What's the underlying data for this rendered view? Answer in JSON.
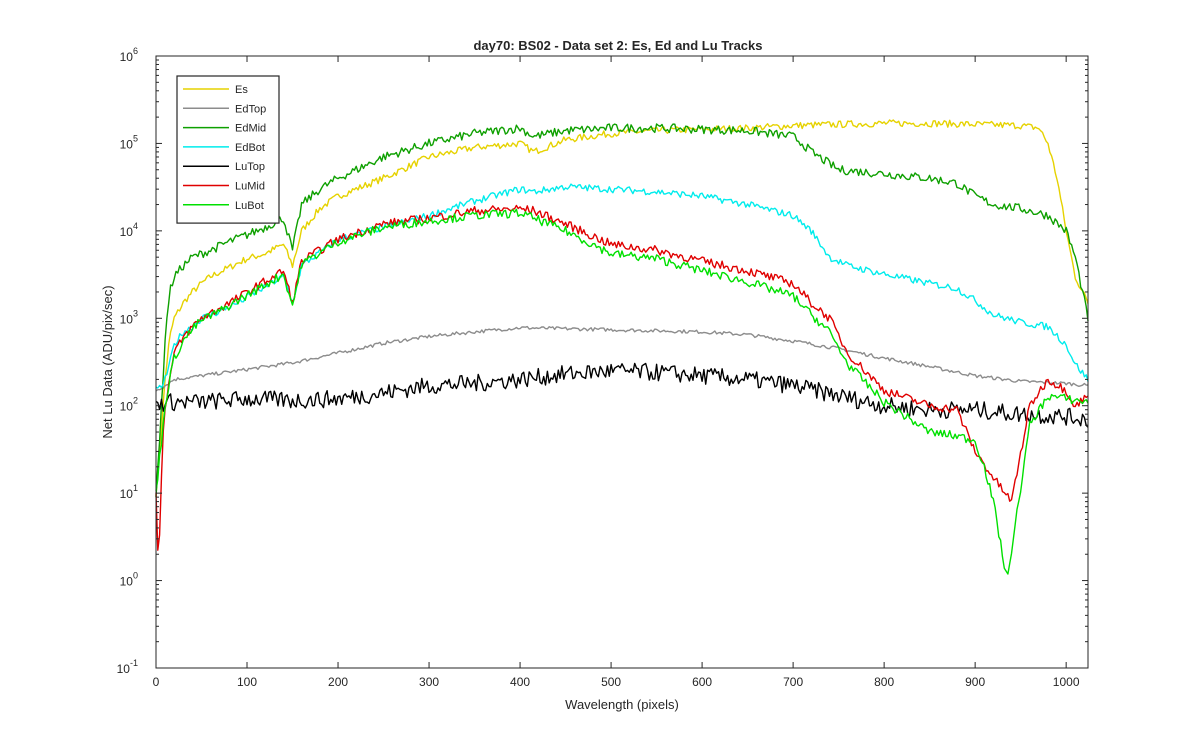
{
  "chart_data": {
    "type": "line",
    "title": "day70: BS02 - Data set 2: Es, Ed and Lu Tracks",
    "xlabel": "Wavelength (pixels)",
    "ylabel": "Net Lu Data (ADU/pix/sec)",
    "xlim": [
      0,
      1024
    ],
    "ylim": [
      0.1,
      1000000
    ],
    "yscale": "log",
    "grid": false,
    "legend_position": "top-left",
    "x_ticks": [
      0,
      100,
      200,
      300,
      400,
      500,
      600,
      700,
      800,
      900,
      1000
    ],
    "x_tick_labels": [
      "0",
      "100",
      "200",
      "300",
      "400",
      "500",
      "600",
      "700",
      "800",
      "900",
      "1000"
    ],
    "y_ticks": [
      {
        "value": 0.1,
        "base": "10",
        "exp": "-1"
      },
      {
        "value": 1,
        "base": "10",
        "exp": "0"
      },
      {
        "value": 10,
        "base": "10",
        "exp": "1"
      },
      {
        "value": 100,
        "base": "10",
        "exp": "2"
      },
      {
        "value": 1000,
        "base": "10",
        "exp": "3"
      },
      {
        "value": 10000,
        "base": "10",
        "exp": "4"
      },
      {
        "value": 100000,
        "base": "10",
        "exp": "5"
      },
      {
        "value": 1000000,
        "base": "10",
        "exp": "6"
      }
    ],
    "series": [
      {
        "name": "Es",
        "color": "#e6d200",
        "noise": 0.04,
        "x": [
          0,
          5,
          10,
          15,
          20,
          30,
          40,
          50,
          60,
          80,
          100,
          120,
          140,
          150,
          160,
          180,
          200,
          250,
          300,
          350,
          400,
          415,
          450,
          500,
          550,
          600,
          650,
          700,
          750,
          800,
          850,
          900,
          950,
          970,
          980,
          990,
          1000,
          1010,
          1024
        ],
        "y": [
          10,
          40,
          200,
          600,
          1000,
          1500,
          2000,
          2500,
          3000,
          3800,
          4800,
          5500,
          7000,
          4000,
          10000,
          18000,
          25000,
          40000,
          70000,
          90000,
          100000,
          80000,
          110000,
          130000,
          140000,
          145000,
          150000,
          160000,
          165000,
          170000,
          170000,
          165000,
          160000,
          150000,
          100000,
          40000,
          10000,
          3000,
          1500
        ]
      },
      {
        "name": "EdTop",
        "color": "#8c8c8c",
        "noise": 0.02,
        "x": [
          0,
          10,
          20,
          50,
          100,
          150,
          200,
          250,
          300,
          350,
          400,
          450,
          500,
          550,
          600,
          650,
          700,
          750,
          800,
          850,
          900,
          950,
          1000,
          1024
        ],
        "y": [
          150,
          170,
          200,
          220,
          260,
          310,
          400,
          520,
          620,
          700,
          780,
          760,
          740,
          720,
          700,
          650,
          550,
          450,
          350,
          280,
          220,
          190,
          180,
          170
        ]
      },
      {
        "name": "EdMid",
        "color": "#0ea000",
        "noise": 0.05,
        "x": [
          0,
          5,
          10,
          15,
          20,
          30,
          40,
          60,
          80,
          100,
          120,
          140,
          150,
          160,
          180,
          200,
          250,
          300,
          350,
          400,
          415,
          450,
          500,
          550,
          600,
          650,
          700,
          710,
          720,
          750,
          800,
          850,
          880,
          900,
          920,
          950,
          980,
          1000,
          1010,
          1024
        ],
        "y": [
          10,
          60,
          600,
          2000,
          3000,
          4000,
          5000,
          6000,
          7500,
          9000,
          11000,
          14000,
          6000,
          20000,
          30000,
          40000,
          70000,
          100000,
          130000,
          150000,
          120000,
          140000,
          150000,
          150000,
          145000,
          140000,
          120000,
          100000,
          80000,
          50000,
          45000,
          40000,
          35000,
          25000,
          20000,
          18000,
          15000,
          10000,
          5000,
          1000
        ]
      },
      {
        "name": "EdBot",
        "color": "#00ecec",
        "noise": 0.04,
        "x": [
          0,
          5,
          10,
          15,
          20,
          30,
          40,
          50,
          70,
          90,
          110,
          140,
          150,
          160,
          200,
          250,
          300,
          350,
          400,
          415,
          450,
          500,
          550,
          600,
          650,
          700,
          720,
          740,
          760,
          800,
          850,
          880,
          900,
          920,
          950,
          980,
          1000,
          1010,
          1024
        ],
        "y": [
          150,
          160,
          200,
          300,
          500,
          700,
          800,
          1000,
          1200,
          1500,
          2000,
          3000,
          1500,
          4000,
          8000,
          11000,
          15000,
          22000,
          30000,
          28000,
          32000,
          30000,
          28000,
          25000,
          20000,
          15000,
          10000,
          5000,
          4000,
          3200,
          2500,
          2200,
          1600,
          1100,
          900,
          800,
          500,
          300,
          200
        ]
      },
      {
        "name": "LuTop",
        "color": "#000000",
        "noise": 0.1,
        "x": [
          0,
          10,
          50,
          100,
          150,
          200,
          250,
          300,
          350,
          400,
          450,
          500,
          550,
          600,
          650,
          700,
          750,
          800,
          850,
          900,
          950,
          1000,
          1024
        ],
        "y": [
          100,
          110,
          110,
          120,
          115,
          120,
          140,
          170,
          180,
          200,
          230,
          250,
          240,
          220,
          200,
          170,
          130,
          100,
          90,
          90,
          80,
          75,
          70
        ]
      },
      {
        "name": "LuMid",
        "color": "#e00000",
        "noise": 0.05,
        "x": [
          0,
          3,
          5,
          8,
          10,
          15,
          20,
          30,
          40,
          50,
          70,
          90,
          110,
          140,
          150,
          160,
          200,
          250,
          300,
          350,
          400,
          415,
          450,
          500,
          550,
          600,
          650,
          700,
          720,
          740,
          760,
          800,
          850,
          880,
          900,
          920,
          940,
          960,
          980,
          1000,
          1010,
          1024
        ],
        "y": [
          10,
          1,
          10,
          50,
          100,
          200,
          400,
          600,
          800,
          1000,
          1300,
          1700,
          2300,
          3500,
          1500,
          4500,
          8000,
          12000,
          14000,
          17000,
          18000,
          17000,
          12000,
          7000,
          6000,
          4500,
          3500,
          2500,
          1500,
          1000,
          400,
          150,
          100,
          90,
          30,
          15,
          8,
          100,
          200,
          150,
          100,
          130
        ]
      },
      {
        "name": "LuBot",
        "color": "#00e000",
        "noise": 0.05,
        "x": [
          0,
          10,
          15,
          20,
          30,
          40,
          50,
          70,
          90,
          110,
          140,
          150,
          160,
          200,
          250,
          300,
          350,
          400,
          415,
          450,
          500,
          550,
          600,
          650,
          700,
          720,
          740,
          760,
          800,
          850,
          880,
          900,
          910,
          920,
          935,
          945,
          960,
          980,
          1000,
          1024
        ],
        "y": [
          10,
          100,
          200,
          350,
          550,
          750,
          950,
          1200,
          1600,
          2100,
          3200,
          1400,
          4200,
          7500,
          11000,
          13000,
          15000,
          16000,
          14000,
          10000,
          5500,
          4800,
          3500,
          2600,
          1800,
          1100,
          700,
          300,
          110,
          50,
          45,
          40,
          20,
          8,
          1,
          5,
          60,
          130,
          120,
          110
        ]
      }
    ]
  }
}
